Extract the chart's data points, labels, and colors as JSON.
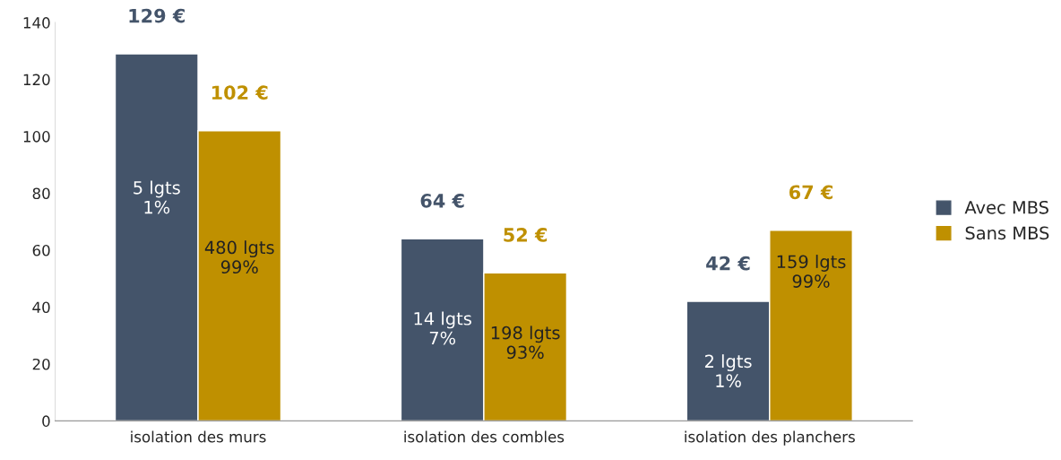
{
  "chart_data": {
    "type": "bar",
    "categories": [
      "isolation des murs",
      "isolation des combles",
      "isolation des planchers"
    ],
    "series": [
      {
        "name": "Avec MBS",
        "color": "#44546a",
        "values": [
          129,
          64,
          42
        ],
        "value_labels": [
          "129 €",
          "64 €",
          "42 €"
        ]
      },
      {
        "name": "Sans MBS",
        "color": "#bf9000",
        "values": [
          102,
          52,
          67
        ],
        "value_labels": [
          "102 €",
          "52 €",
          "67 €"
        ]
      }
    ],
    "ylim": [
      0,
      140
    ],
    "yticks": [
      0,
      20,
      40,
      60,
      80,
      100,
      120,
      140
    ],
    "grid": false,
    "legend": "right",
    "annotations": [
      {
        "text": "5 lgts\n1%",
        "x": "isolation des murs",
        "y": 78
      },
      {
        "text": "480 lgts\n99%",
        "x": "isolation des murs",
        "y": 57
      },
      {
        "text": "14 lgts\n7%",
        "x": "isolation des combles",
        "y": 32
      },
      {
        "text": "198 lgts\n93%",
        "x": "isolation des combles",
        "y": 27
      },
      {
        "text": "2 lgts\n1%",
        "x": "isolation des planchers",
        "y": 17
      },
      {
        "text": "159 lgts\n99%",
        "x": "isolation des planchers",
        "y": 52
      }
    ]
  }
}
